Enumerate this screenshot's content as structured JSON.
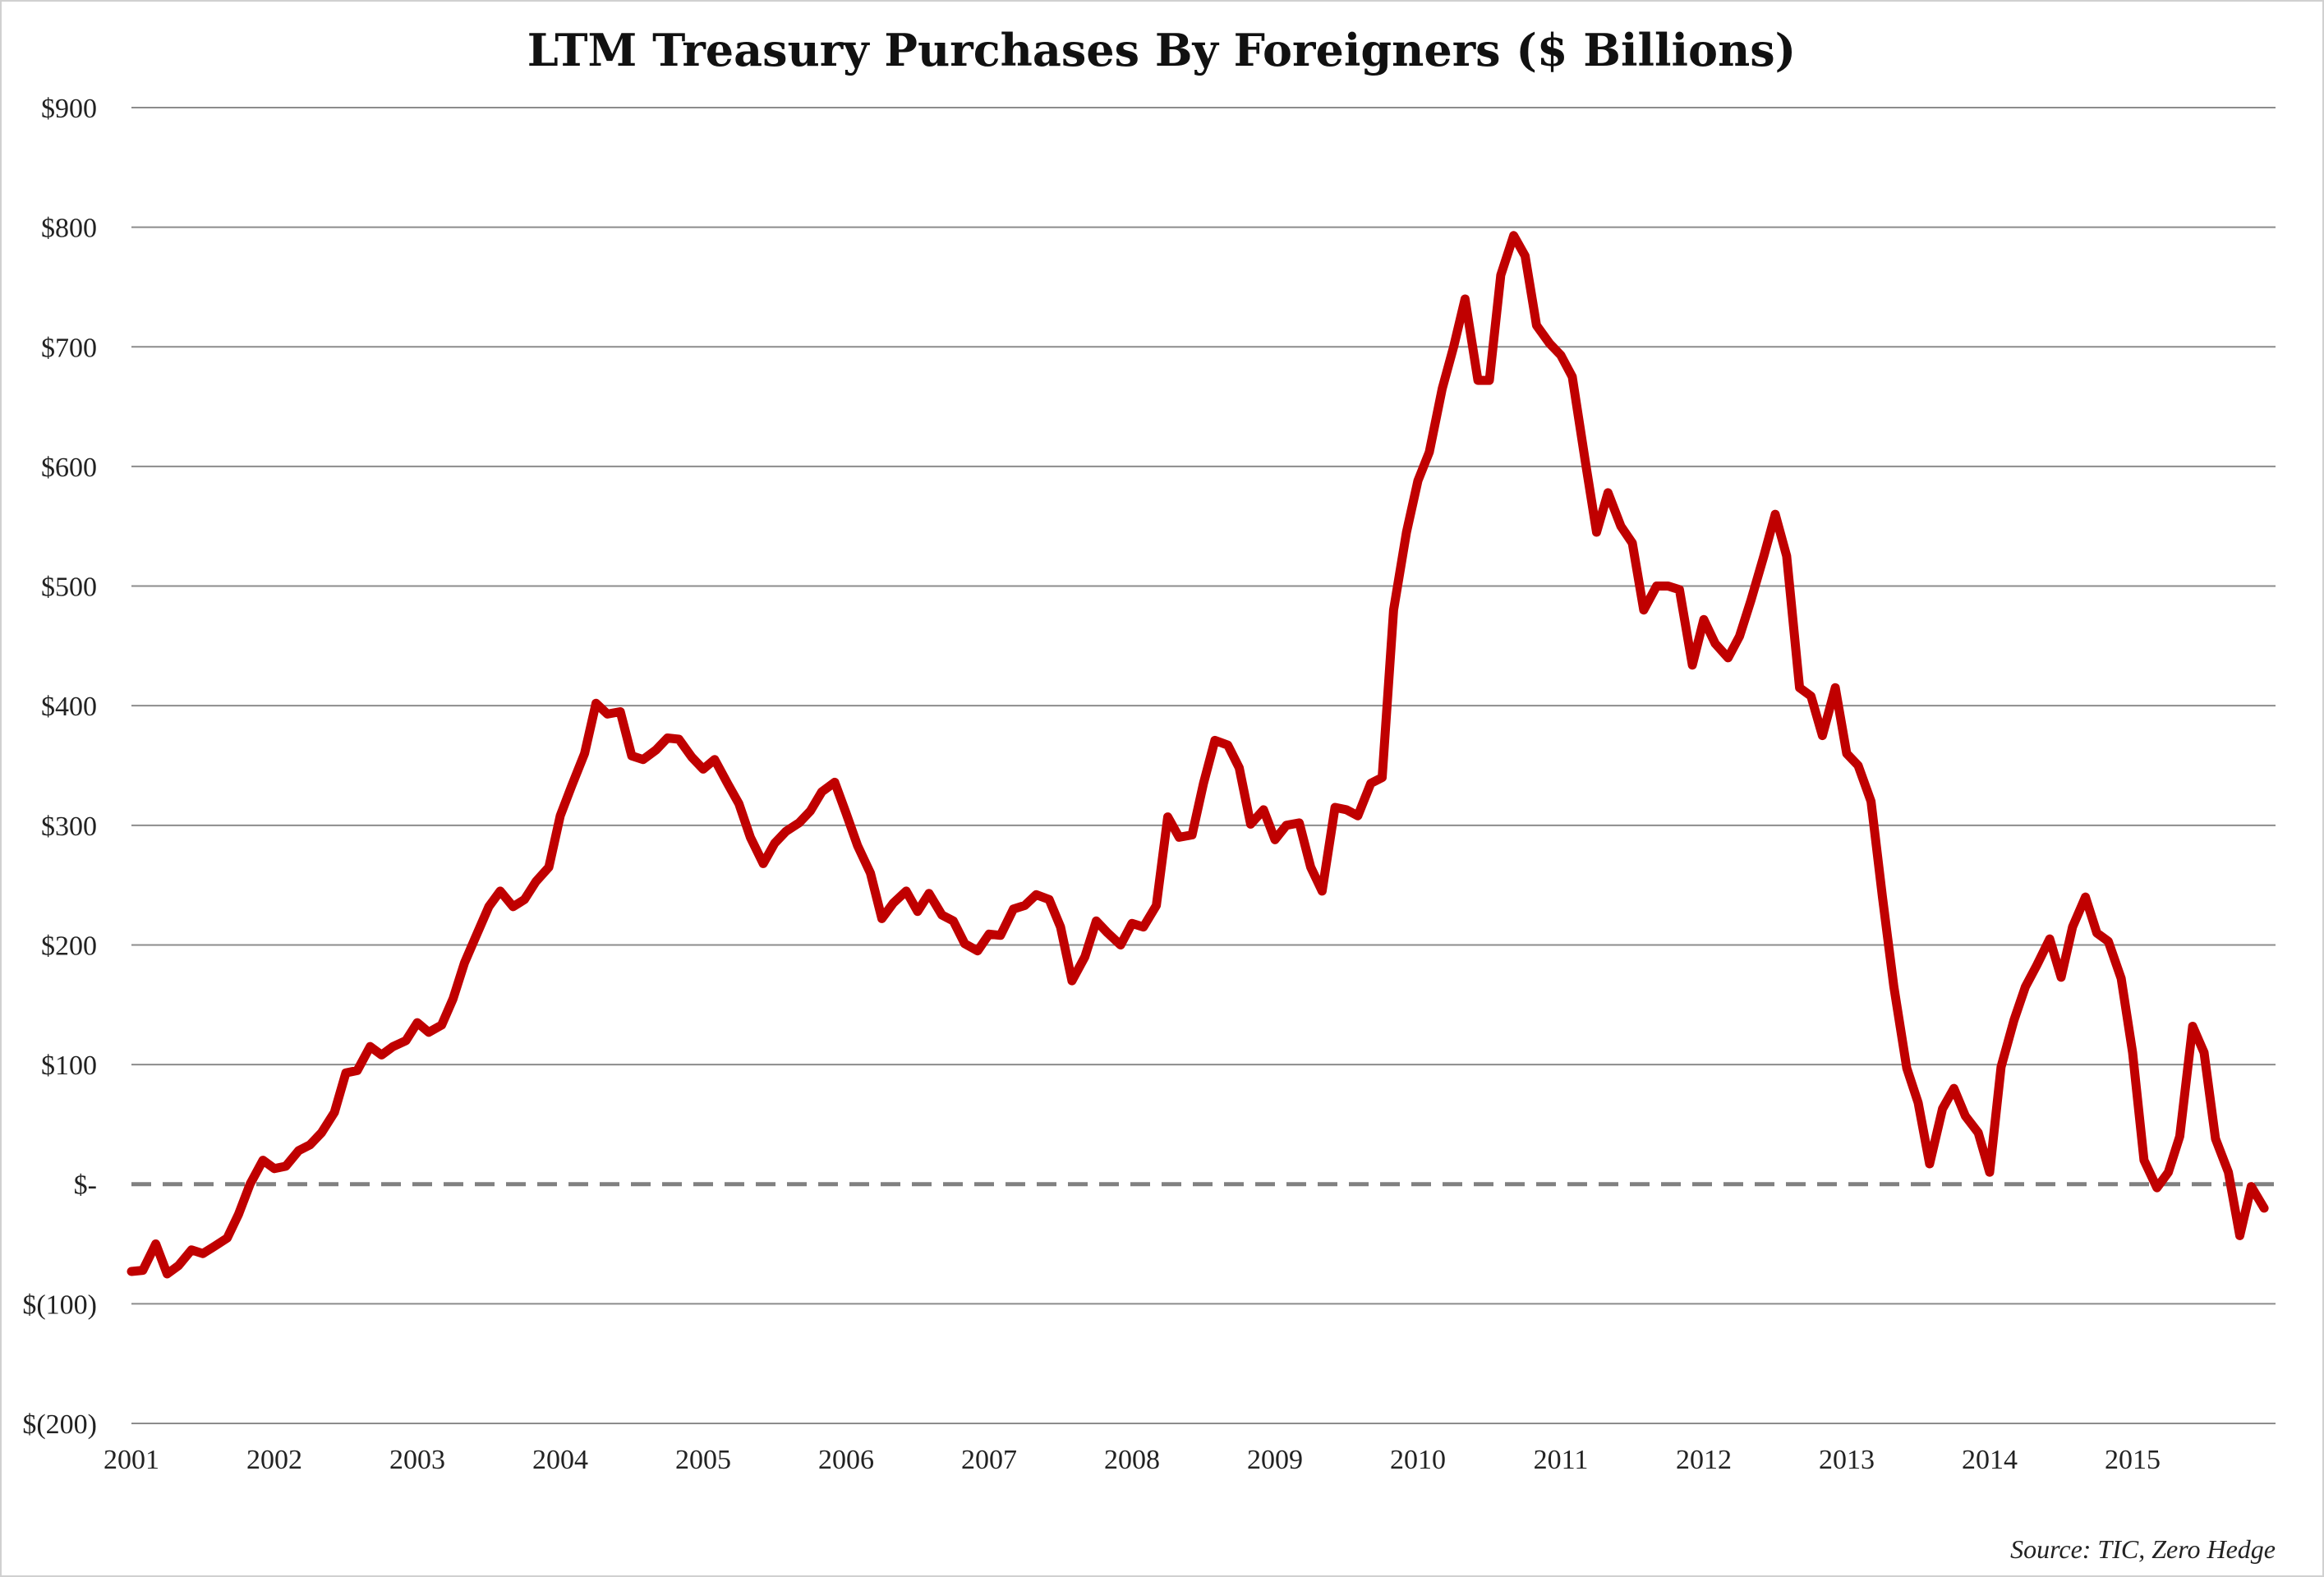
{
  "chart_data": {
    "type": "line",
    "title": "LTM Treasury Purchases By Foreigners ($ Billions)",
    "source": "Source: TIC, Zero Hedge",
    "xlabel": "",
    "ylabel": "",
    "x_ticks": [
      "2001",
      "2002",
      "2003",
      "2004",
      "2005",
      "2006",
      "2007",
      "2008",
      "2009",
      "2010",
      "2011",
      "2012",
      "2013",
      "2014",
      "2015"
    ],
    "y_ticks": [
      {
        "value": 900,
        "label": "$900"
      },
      {
        "value": 800,
        "label": "$800"
      },
      {
        "value": 700,
        "label": "$700"
      },
      {
        "value": 600,
        "label": "$600"
      },
      {
        "value": 500,
        "label": "$500"
      },
      {
        "value": 400,
        "label": "$400"
      },
      {
        "value": 300,
        "label": "$300"
      },
      {
        "value": 200,
        "label": "$200"
      },
      {
        "value": 100,
        "label": "$100"
      },
      {
        "value": 0,
        "label": "$-"
      },
      {
        "value": -100,
        "label": "$(100)"
      },
      {
        "value": -200,
        "label": "$(200)"
      }
    ],
    "ylim": [
      -200,
      900
    ],
    "xlim": [
      2001.0,
      2015.92
    ],
    "grid": true,
    "zero_line": "dashed",
    "line_color": "#c00000",
    "series": [
      {
        "x": [
          2001.0,
          2001.08,
          2001.17,
          2001.25,
          2001.33,
          2001.42,
          2001.5,
          2001.58,
          2001.67,
          2001.75,
          2001.83,
          2001.92,
          2002.0,
          2002.08,
          2002.17,
          2002.25,
          2002.33,
          2002.42,
          2002.5,
          2002.58,
          2002.67,
          2002.75,
          2002.83,
          2002.92,
          2003.0,
          2003.08,
          2003.17,
          2003.25,
          2003.33,
          2003.42,
          2003.5,
          2003.58,
          2003.67,
          2003.75,
          2003.83,
          2003.92,
          2004.0,
          2004.08,
          2004.17,
          2004.25,
          2004.33,
          2004.42,
          2004.5,
          2004.58,
          2004.67,
          2004.75,
          2004.83,
          2004.92,
          2005.0,
          2005.08,
          2005.17,
          2005.25,
          2005.33,
          2005.42,
          2005.5,
          2005.58,
          2005.67,
          2005.75,
          2005.83,
          2005.92,
          2006.0,
          2006.08,
          2006.17,
          2006.25,
          2006.33,
          2006.42,
          2006.5,
          2006.58,
          2006.67,
          2006.75,
          2006.83,
          2006.92,
          2007.0,
          2007.08,
          2007.17,
          2007.25,
          2007.33,
          2007.42,
          2007.5,
          2007.58,
          2007.67,
          2007.75,
          2007.83,
          2007.92,
          2008.0,
          2008.08,
          2008.17,
          2008.25,
          2008.33,
          2008.42,
          2008.5,
          2008.58,
          2008.67,
          2008.75,
          2008.83,
          2008.92,
          2009.0,
          2009.08,
          2009.17,
          2009.25,
          2009.33,
          2009.42,
          2009.5,
          2009.58,
          2009.67,
          2009.75,
          2009.83,
          2009.92,
          2010.0,
          2010.08,
          2010.17,
          2010.25,
          2010.33,
          2010.42,
          2010.5,
          2010.58,
          2010.67,
          2010.75,
          2010.83,
          2010.92,
          2011.0,
          2011.08,
          2011.17,
          2011.25,
          2011.33,
          2011.42,
          2011.5,
          2011.58,
          2011.67,
          2011.75,
          2011.83,
          2011.92,
          2012.0,
          2012.08,
          2012.17,
          2012.25,
          2012.33,
          2012.42,
          2012.5,
          2012.58,
          2012.67,
          2012.75,
          2012.83,
          2012.92,
          2013.0,
          2013.08,
          2013.17,
          2013.25,
          2013.33,
          2013.42,
          2013.5,
          2013.58,
          2013.67,
          2013.75,
          2013.83,
          2013.92,
          2014.0,
          2014.08,
          2014.17,
          2014.25,
          2014.33,
          2014.42,
          2014.5,
          2014.58,
          2014.67,
          2014.75,
          2014.83,
          2014.92,
          2015.0,
          2015.08,
          2015.17,
          2015.25,
          2015.33,
          2015.42,
          2015.5,
          2015.58,
          2015.67,
          2015.75,
          2015.83,
          2015.92
        ],
        "y": [
          -73,
          -72,
          -50,
          -75,
          -68,
          -55,
          -58,
          -52,
          -45,
          -25,
          0,
          20,
          13,
          15,
          28,
          33,
          43,
          60,
          93,
          95,
          115,
          108,
          115,
          120,
          135,
          127,
          133,
          155,
          185,
          210,
          232,
          245,
          232,
          238,
          253,
          265,
          308,
          333,
          360,
          402,
          393,
          395,
          358,
          355,
          363,
          373,
          372,
          357,
          347,
          355,
          335,
          318,
          290,
          268,
          285,
          295,
          302,
          312,
          328,
          336,
          310,
          283,
          260,
          222,
          235,
          245,
          228,
          243,
          225,
          220,
          201,
          195,
          209,
          208,
          230,
          233,
          242,
          238,
          215,
          170,
          190,
          220,
          210,
          200,
          218,
          215,
          233,
          307,
          290,
          292,
          335,
          371,
          367,
          348,
          301,
          313,
          288,
          300,
          302,
          265,
          245,
          315,
          313,
          308,
          335,
          340,
          480,
          545,
          588,
          612,
          665,
          700,
          740,
          672,
          672,
          760,
          793,
          776,
          718,
          703,
          693,
          675,
          605,
          545,
          578,
          550,
          536,
          480,
          500,
          500,
          497,
          434,
          472,
          452,
          440,
          458,
          488,
          525,
          560,
          525,
          415,
          408,
          375,
          415,
          360,
          350,
          320,
          240,
          165,
          97,
          68,
          17,
          63,
          80,
          57,
          43,
          10,
          98,
          137,
          165,
          183,
          205,
          173,
          215,
          240,
          210,
          203,
          172,
          110,
          20,
          -3,
          10,
          40,
          132,
          110,
          38,
          10,
          -43,
          -2,
          -20
        ]
      }
    ]
  }
}
